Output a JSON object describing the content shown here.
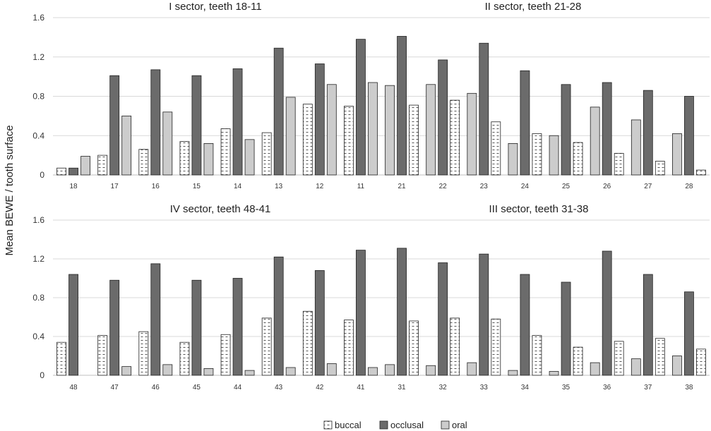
{
  "chart_data": {
    "type": "bar",
    "ylabel": "Mean BEWE / tooth surface",
    "ylim": [
      0,
      1.6
    ],
    "yticks": [
      "0",
      "0.4",
      "0.8",
      "1.2",
      "1.6"
    ],
    "grid": true,
    "legend": {
      "position": "bottom-center",
      "entries": [
        {
          "key": "buccal",
          "label": "buccal",
          "fill": "#ffffff",
          "pattern": "dashes"
        },
        {
          "key": "occlusal",
          "label": "occlusal",
          "fill": "#6b6b6b"
        },
        {
          "key": "oral",
          "label": "oral",
          "fill": "#cccccc"
        }
      ]
    },
    "panels": [
      {
        "titles": [
          "I sector, teeth 18-11",
          "II sector, teeth 21-28"
        ],
        "categories": [
          "18",
          "17",
          "16",
          "15",
          "14",
          "13",
          "12",
          "11",
          "21",
          "22",
          "23",
          "24",
          "25",
          "26",
          "27",
          "28"
        ],
        "groups": [
          {
            "series": [
              "buccal",
              "occlusal",
              "oral"
            ],
            "values": [
              [
                0.07,
                0.07,
                0.19
              ],
              [
                0.2,
                1.01,
                0.6
              ],
              [
                0.26,
                1.07,
                0.64
              ],
              [
                0.34,
                1.01,
                0.32
              ],
              [
                0.47,
                1.08,
                0.36
              ],
              [
                0.43,
                1.29,
                0.79
              ],
              [
                0.72,
                1.13,
                0.92
              ],
              [
                0.7,
                1.38,
                0.94
              ]
            ]
          },
          {
            "series": [
              "oral",
              "occlusal",
              "buccal"
            ],
            "values": [
              [
                0.91,
                1.41,
                0.71
              ],
              [
                0.92,
                1.17,
                0.76
              ],
              [
                0.83,
                1.34,
                0.54
              ],
              [
                0.32,
                1.06,
                0.42
              ],
              [
                0.4,
                0.92,
                0.33
              ],
              [
                0.69,
                0.94,
                0.22
              ],
              [
                0.56,
                0.86,
                0.14
              ],
              [
                0.42,
                0.8,
                0.05
              ]
            ]
          }
        ]
      },
      {
        "titles": [
          "IV sector, teeth 48-41",
          "III sector, teeth 31-38"
        ],
        "categories": [
          "48",
          "47",
          "46",
          "45",
          "44",
          "43",
          "42",
          "41",
          "31",
          "32",
          "33",
          "34",
          "35",
          "36",
          "37",
          "38"
        ],
        "groups": [
          {
            "series": [
              "buccal",
              "occlusal",
              "oral"
            ],
            "values": [
              [
                0.34,
                1.04,
                0.0
              ],
              [
                0.41,
                0.98,
                0.09
              ],
              [
                0.45,
                1.15,
                0.11
              ],
              [
                0.34,
                0.98,
                0.07
              ],
              [
                0.42,
                1.0,
                0.05
              ],
              [
                0.59,
                1.22,
                0.08
              ],
              [
                0.66,
                1.08,
                0.12
              ],
              [
                0.57,
                1.29,
                0.08
              ]
            ]
          },
          {
            "series": [
              "oral",
              "occlusal",
              "buccal"
            ],
            "values": [
              [
                0.11,
                1.31,
                0.56
              ],
              [
                0.1,
                1.16,
                0.59
              ],
              [
                0.13,
                1.25,
                0.58
              ],
              [
                0.05,
                1.04,
                0.41
              ],
              [
                0.04,
                0.96,
                0.29
              ],
              [
                0.13,
                1.28,
                0.35
              ],
              [
                0.17,
                1.04,
                0.38
              ],
              [
                0.2,
                0.86,
                0.27
              ]
            ]
          }
        ]
      }
    ]
  }
}
